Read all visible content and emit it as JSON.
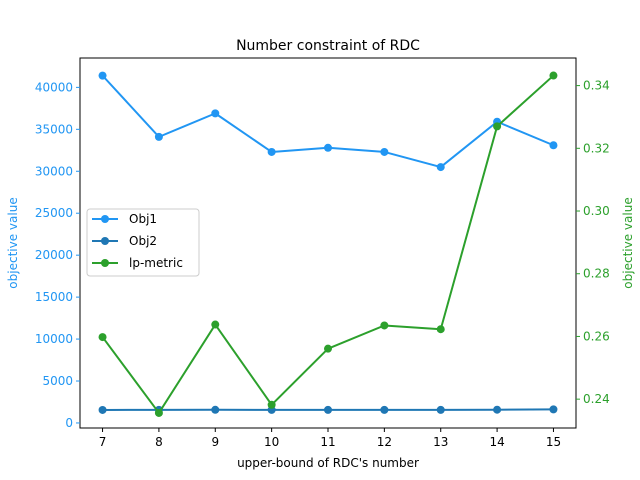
{
  "chart_data": {
    "type": "line",
    "title": "Number constraint of RDC",
    "xlabel": "upper-bound of RDC's number",
    "ylabel_left": "objective value",
    "ylabel_right": "objective value",
    "x": [
      7,
      8,
      9,
      10,
      11,
      12,
      13,
      14,
      15
    ],
    "x_ticks": [
      "7",
      "8",
      "9",
      "10",
      "11",
      "12",
      "13",
      "14",
      "15"
    ],
    "xlim": [
      6.6,
      15.4
    ],
    "ylim_left": [
      -600,
      43500
    ],
    "ylim_right": [
      0.2308,
      0.3488
    ],
    "y_ticks_left": [
      "0",
      "5000",
      "10000",
      "15000",
      "20000",
      "25000",
      "30000",
      "35000",
      "40000"
    ],
    "y_ticks_right": [
      "0.24",
      "0.26",
      "0.28",
      "0.30",
      "0.32",
      "0.34"
    ],
    "grid": false,
    "legend_position": "center-left",
    "colors": {
      "left_axis": "#2196f3",
      "right_axis": "#2ca02c",
      "obj1": "#2196f3",
      "obj2": "#1f77b4",
      "lp": "#2ca02c"
    },
    "series": [
      {
        "name": "Obj1",
        "axis": "left",
        "color": "#2196f3",
        "values": [
          41400,
          34100,
          36900,
          32300,
          32800,
          32300,
          30500,
          35900,
          33100
        ]
      },
      {
        "name": "Obj2",
        "axis": "left",
        "color": "#1f77b4",
        "values": [
          1550,
          1560,
          1570,
          1560,
          1560,
          1560,
          1560,
          1580,
          1620
        ]
      },
      {
        "name": "lp-metric",
        "axis": "right",
        "color": "#2ca02c",
        "values": [
          0.2598,
          0.2356,
          0.2638,
          0.2382,
          0.2561,
          0.2635,
          0.2623,
          0.327,
          0.3432
        ]
      }
    ]
  }
}
